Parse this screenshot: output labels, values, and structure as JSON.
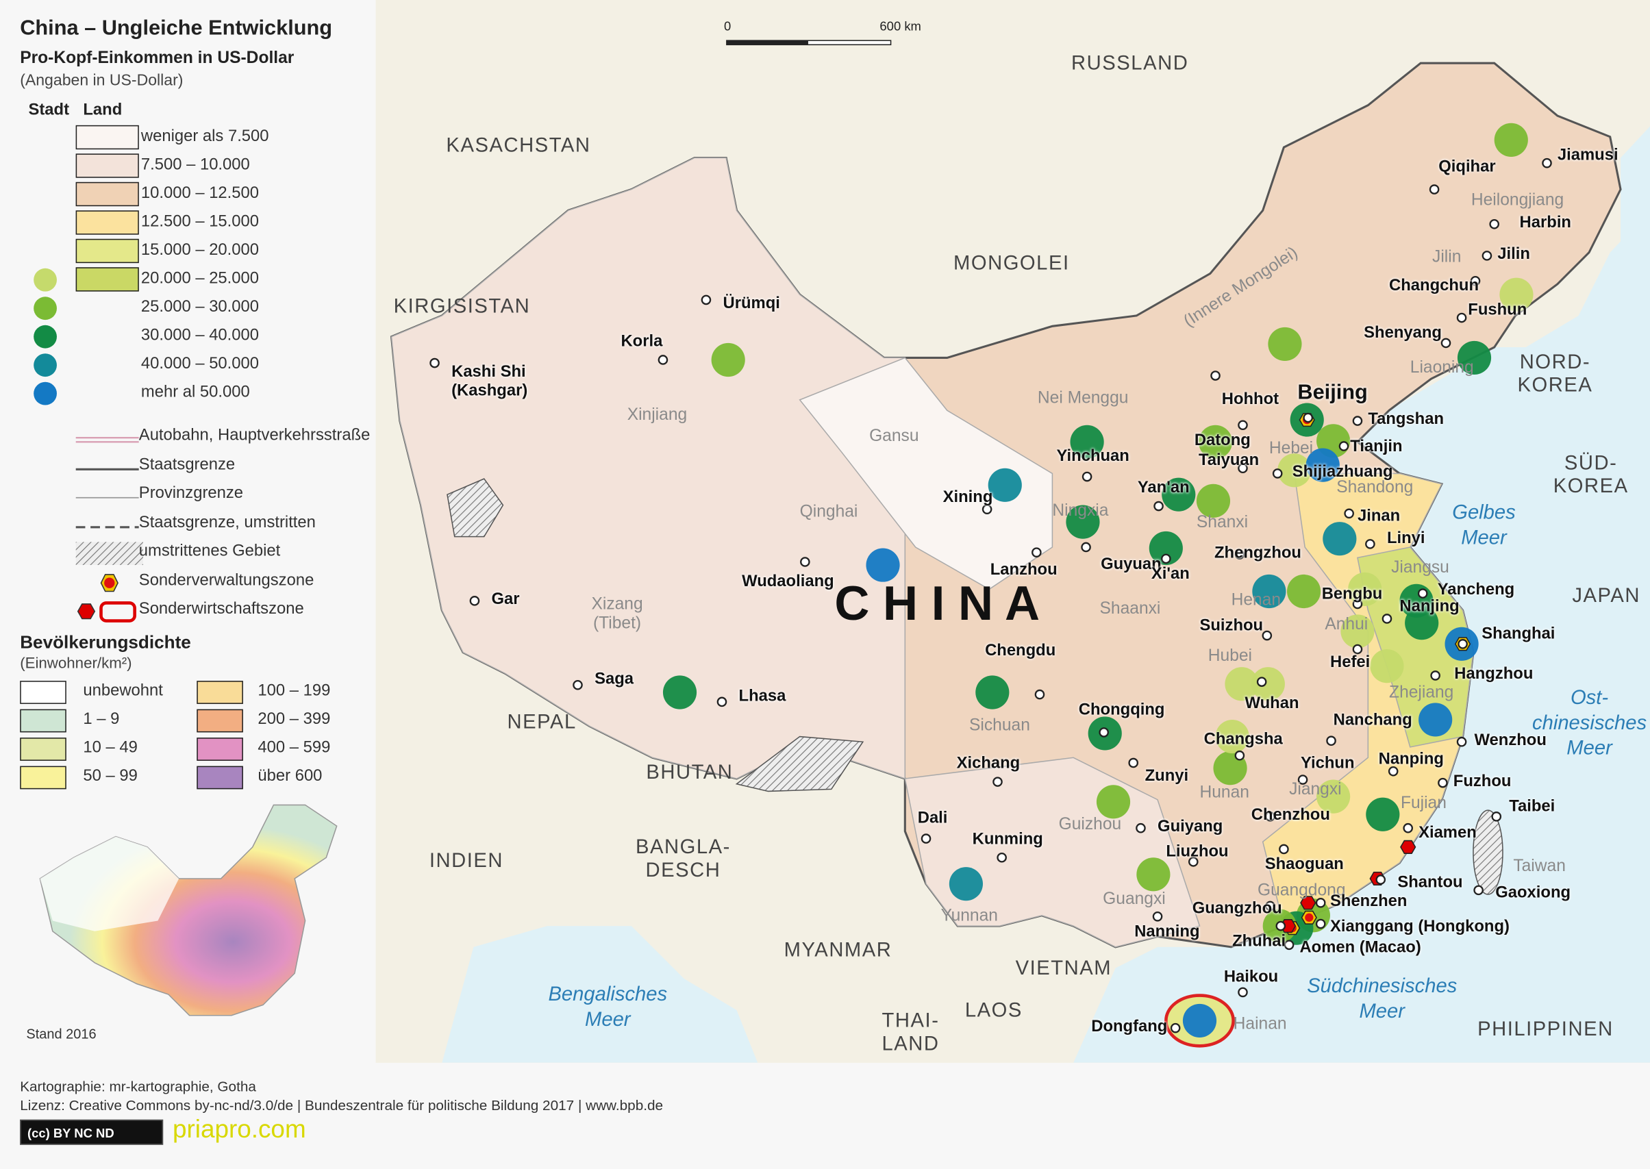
{
  "title": "China – Ungleiche Entwicklung",
  "subtitle": "Pro-Kopf-Einkommen in US-Dollar",
  "subtitle_note": "(Angaben in US-Dollar)",
  "legend_income": {
    "col_city": "Stadt",
    "col_land": "Land",
    "classes": [
      {
        "label": "weniger als 7.500",
        "land_color": "#faf5f2",
        "city_color": null
      },
      {
        "label": "7.500 – 10.000",
        "land_color": "#f3e3da",
        "city_color": null
      },
      {
        "label": "10.000 – 12.500",
        "land_color": "#f0d2b5",
        "city_color": null
      },
      {
        "label": "12.500 – 15.000",
        "land_color": "#fbe29e",
        "city_color": null
      },
      {
        "label": "15.000 – 20.000",
        "land_color": "#e4e88a",
        "city_color": null
      },
      {
        "label": "20.000 – 25.000",
        "land_color": "#cad865",
        "city_color": "#c5da6c"
      },
      {
        "label": "25.000 – 30.000",
        "land_color": null,
        "city_color": "#7bbb34"
      },
      {
        "label": "30.000 – 40.000",
        "land_color": null,
        "city_color": "#138b45"
      },
      {
        "label": "40.000 – 50.000",
        "land_color": null,
        "city_color": "#138a9a"
      },
      {
        "label": "mehr al 50.000",
        "land_color": null,
        "city_color": "#1479c4"
      }
    ]
  },
  "legend_lines": [
    "Autobahn, Hauptverkehrsstraße",
    "Staatsgrenze",
    "Provinzgrenze",
    "Staatsgrenze, umstritten",
    "umstrittenes Gebiet",
    "Sonderverwaltungszone",
    "Sonderwirtschaftszone"
  ],
  "legend_density": {
    "title": "Bevölkerungsdichte",
    "unit": "(Einwohner/km²)",
    "classes": [
      {
        "label": "unbewohnt",
        "color": "#ffffff"
      },
      {
        "label": "1 – 9",
        "color": "#cfe6d4"
      },
      {
        "label": "10 – 49",
        "color": "#e3e8a8"
      },
      {
        "label": "50 – 99",
        "color": "#f9f29a"
      },
      {
        "label": "100 – 199",
        "color": "#f9dc98"
      },
      {
        "label": "200 – 399",
        "color": "#f2ae82"
      },
      {
        "label": "400 – 599",
        "color": "#e292c3"
      },
      {
        "label": "über 600",
        "color": "#a885bf"
      }
    ]
  },
  "inset_note": "Stand 2016",
  "footer": {
    "line1": "Kartographie: mr-kartographie, Gotha",
    "line2": "Lizenz: Creative Commons by-nc-nd/3.0/de | Bundeszentrale für politische Bildung 2017 | www.bpb.de",
    "badge": "(cc) BY NC ND",
    "watermark": "priapro.com"
  },
  "scale": {
    "start": "0",
    "end": "600 km"
  },
  "country_name": "C H I N A",
  "countries": [
    "RUSSLAND",
    "KASACHSTAN",
    "MONGOLEI",
    "KIRGISISTAN",
    "NORD-\nKOREA",
    "SÜD-\nKOREA",
    "JAPAN",
    "INDIEN",
    "NEPAL",
    "BHUTAN",
    "BANGLA-\nDESCH",
    "MYANMAR",
    "VIETNAM",
    "LAOS",
    "THAI-\nLAND",
    "PHILIPPINEN"
  ],
  "seas": [
    "Gelbes\nMeer",
    "Ost-\nchinesisches\nMeer",
    "Südchinesisches\nMeer",
    "Bengalisches\nMeer"
  ],
  "provinces": [
    "Heilongjiang",
    "Jilin",
    "Liaoning",
    "Nei Menggu",
    "(Innere Mongolei)",
    "Hebei",
    "Shandong",
    "Shanxi",
    "Henan",
    "Jiangsu",
    "Anhui",
    "Hubei",
    "Zhejiang",
    "Hunan",
    "Jiangxi",
    "Fujian",
    "Guangdong",
    "Guangxi",
    "Guizhou",
    "Yunnan",
    "Sichuan",
    "Gansu",
    "Ningxia",
    "Shaanxi",
    "Qinghai",
    "Xinjiang",
    "Xizang\n(Tibet)",
    "Hainan",
    "Taiwan"
  ],
  "cities": [
    "Ürümqi",
    "Korla",
    "Kashi Shi\n(Kashgar)",
    "Gar",
    "Saga",
    "Lhasa",
    "Wudaoliang",
    "Xining",
    "Lanzhou",
    "Yinchuan",
    "Guyuan",
    "Xi'an",
    "Yan'an",
    "Hohhot",
    "Datong",
    "Taiyuan",
    "Beijing",
    "Tangshan",
    "Tianjin",
    "Shijiazhuang",
    "Jinan",
    "Linyi",
    "Zhengzhou",
    "Chengdu",
    "Chongqing",
    "Xichang",
    "Zunyi",
    "Guiyang",
    "Kunming",
    "Dali",
    "Liuzhou",
    "Nanning",
    "Guangzhou",
    "Zhuhai",
    "Shenzhen",
    "Xianggang (Hongkong)",
    "Aomen (Macao)",
    "Haikou",
    "Dongfang",
    "Changsha",
    "Chenzhou",
    "Shaoguan",
    "Wuhan",
    "Suizhou",
    "Hefei",
    "Bengbu",
    "Nanjing",
    "Shanghai",
    "Hangzhou",
    "Yancheng",
    "Wenzhou",
    "Nanping",
    "Fuzhou",
    "Xiamen",
    "Shantou",
    "Yichun",
    "Nanchang",
    "Taibei",
    "Gaoxiong",
    "Qiqihar",
    "Jiamusi",
    "Harbin",
    "Changchun",
    "Jilin",
    "Fushun",
    "Shenyang"
  ],
  "city_income_levels": [
    6,
    6,
    8,
    9,
    7,
    5,
    6,
    7,
    7,
    6,
    5,
    6,
    7,
    7,
    8,
    8,
    7,
    7,
    6,
    8,
    6,
    6,
    5,
    7,
    5,
    5,
    7,
    9,
    9,
    9,
    6,
    7,
    6,
    5,
    7,
    9,
    6,
    5,
    5,
    7,
    6,
    7,
    5
  ]
}
